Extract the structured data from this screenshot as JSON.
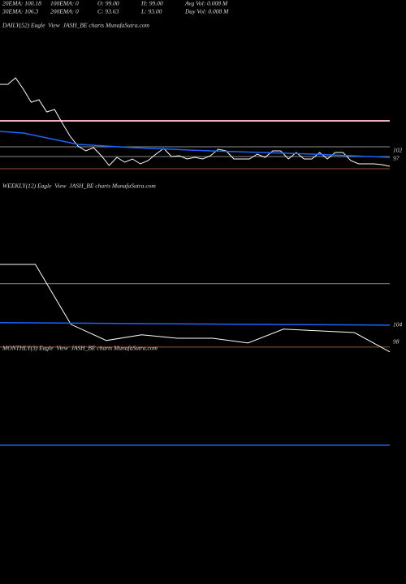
{
  "header": [
    [
      "20EMA: 100.18",
      "100EMA: 0",
      "O: 99.00",
      "H: 99.00",
      "Avg Vol: 0.008 M"
    ],
    [
      "30EMA: 106.3",
      "200EMA: 0",
      "C: 93.63",
      "L: 93.00",
      "Day Vol: 0.008 M"
    ]
  ],
  "chart_data": [
    {
      "type": "line",
      "title": "DAILY(52) Eagle  View  JASH_BE charts MunafaSutra.com",
      "xlim": [
        0,
        50
      ],
      "ylim": [
        82.5,
        175
      ],
      "yticks": [
        102,
        97
      ],
      "series": [
        {
          "color": "#ffffff",
          "x": [
            0,
            1,
            2,
            3,
            4,
            5,
            6,
            7,
            8,
            9,
            10,
            11,
            12,
            13,
            14,
            15,
            16,
            17,
            18,
            19,
            20,
            21,
            22,
            23,
            24,
            25,
            26,
            27,
            28,
            29,
            30,
            31,
            32,
            33,
            34,
            35,
            36,
            37,
            38,
            39,
            40,
            41,
            42,
            43,
            44,
            45,
            46,
            47,
            48,
            49,
            50
          ],
          "values": [
            143,
            143,
            147,
            140,
            132,
            133.5,
            126,
            127.5,
            119,
            111,
            105,
            102,
            104,
            99,
            93,
            98,
            95,
            97,
            94,
            96,
            100,
            103.5,
            98.5,
            99,
            97,
            98,
            97,
            99,
            103,
            102,
            97,
            97,
            97,
            100,
            98,
            102,
            102,
            97,
            101,
            97,
            97,
            101,
            97,
            101,
            101,
            96,
            94,
            94,
            94,
            93.5,
            92.5
          ]
        },
        {
          "color": "#1e64ff",
          "x": [
            0,
            3,
            10,
            17,
            27,
            40,
            50
          ],
          "values": [
            114,
            113,
            106,
            104,
            102,
            100,
            98
          ]
        }
      ],
      "levels": [
        {
          "value": 120.5,
          "color": "#f4a6c8"
        },
        {
          "value": 104.5,
          "color": "#8a8a8a"
        },
        {
          "value": 98.5,
          "color": "#8a8a8a"
        },
        {
          "value": 91,
          "color": "#a0522d"
        }
      ]
    },
    {
      "type": "line",
      "title": "WEEKLY(12) Eagle  View  JASH_BE charts MunafaSutra.com",
      "xlim": [
        0,
        11
      ],
      "ylim": [
        93.4,
        151.4
      ],
      "yticks": [
        104,
        98
      ],
      "series": [
        {
          "color": "#ffffff",
          "x": [
            0,
            1,
            2,
            3,
            4,
            5,
            6,
            7,
            8,
            9,
            10,
            11
          ],
          "values": [
            125.4,
            125.4,
            104.3,
            98.6,
            100.6,
            99.4,
            99.4,
            97.7,
            102.6,
            102,
            101.4,
            94.6
          ]
        },
        {
          "color": "#1e64ff",
          "x": [
            0,
            11
          ],
          "values": [
            104.9,
            104
          ]
        }
      ],
      "levels": [
        {
          "value": 118.6,
          "color": "#8a8a8a"
        },
        {
          "value": 96.3,
          "color": "#a0522d"
        }
      ]
    },
    {
      "type": "line",
      "title": "MONTHLY(3) Eagle  View  JASH_BE charts MunafaSutra.com",
      "xlim": [
        0,
        2
      ],
      "ylim": [
        93.4,
        151.4
      ],
      "yticks": [],
      "series": [
        {
          "color": "#1e64ff",
          "x": [
            0,
            2
          ],
          "values": [
            127.1,
            127.1
          ]
        }
      ],
      "levels": []
    }
  ]
}
